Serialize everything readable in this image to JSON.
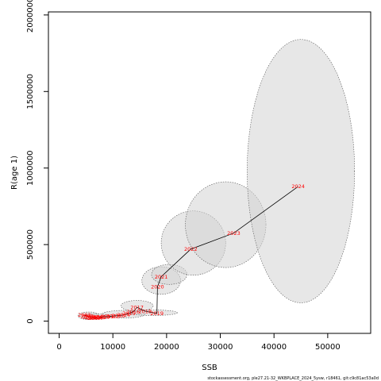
{
  "chart_data": {
    "type": "scatter",
    "title": "",
    "xlabel": "SSB",
    "ylabel": "R(age 1)",
    "xlim": [
      -2000,
      58000
    ],
    "ylim": [
      -80000,
      2020000
    ],
    "x_ticks": [
      0,
      10000,
      20000,
      30000,
      40000,
      50000
    ],
    "x_tick_labels": [
      "0",
      "10000",
      "20000",
      "30000",
      "40000",
      "50000"
    ],
    "y_ticks": [
      0,
      500000,
      1000000,
      1500000,
      2000000
    ],
    "y_tick_labels": [
      "0",
      "500000",
      "1000000",
      "1500000",
      "2000000"
    ],
    "grid": false,
    "legend": "none",
    "footer": "stockassessment.org, ple27.21-32_WKBPLACE_2024_5ysw, r18461, git:c9c81ac53a0d",
    "colors": {
      "line": "#000000",
      "label": "#ff0000",
      "ellipse_fill": "#d3d3d3",
      "ellipse_stroke": "#555555"
    },
    "series": [
      {
        "points": [
          {
            "label": "2002",
            "x": 4700,
            "y": 40000
          },
          {
            "label": "2003",
            "x": 5200,
            "y": 33000
          },
          {
            "label": "2004",
            "x": 5600,
            "y": 28000
          },
          {
            "label": "2005",
            "x": 6000,
            "y": 24000
          },
          {
            "label": "2006",
            "x": 6300,
            "y": 22000
          },
          {
            "label": "2007",
            "x": 6600,
            "y": 20000
          },
          {
            "label": "2008",
            "x": 7000,
            "y": 22000
          },
          {
            "label": "2009",
            "x": 7500,
            "y": 25000
          },
          {
            "label": "2010",
            "x": 8200,
            "y": 28000
          },
          {
            "label": "2011",
            "x": 9000,
            "y": 30000
          },
          {
            "label": "2012",
            "x": 10000,
            "y": 33000
          },
          {
            "label": "2013",
            "x": 11000,
            "y": 36000
          },
          {
            "label": "2014",
            "x": 12000,
            "y": 40000
          },
          {
            "label": "2015",
            "x": 13000,
            "y": 50000
          },
          {
            "label": "2016",
            "x": 13800,
            "y": 62000
          },
          {
            "label": "2017",
            "x": 14500,
            "y": 90000
          },
          {
            "label": "2018",
            "x": 16000,
            "y": 65000
          },
          {
            "label": "2019",
            "x": 18200,
            "y": 50000
          },
          {
            "label": "2020",
            "x": 18300,
            "y": 225000
          },
          {
            "label": "2021",
            "x": 19000,
            "y": 290000
          },
          {
            "label": "2022",
            "x": 24500,
            "y": 470000
          },
          {
            "label": "2023",
            "x": 32500,
            "y": 575000
          },
          {
            "label": "2024",
            "x": 44500,
            "y": 880000
          }
        ],
        "ellipses": [
          {
            "cx": 5500,
            "cy": 35000,
            "rx": 2000,
            "ry": 25000
          },
          {
            "cx": 7000,
            "cy": 30000,
            "rx": 2600,
            "ry": 18000
          },
          {
            "cx": 12000,
            "cy": 45000,
            "rx": 4000,
            "ry": 25000
          },
          {
            "cx": 14500,
            "cy": 100000,
            "rx": 3000,
            "ry": 35000
          },
          {
            "cx": 17500,
            "cy": 55000,
            "rx": 4500,
            "ry": 18000
          },
          {
            "cx": 19000,
            "cy": 265000,
            "rx": 3600,
            "ry": 90000
          },
          {
            "cx": 20500,
            "cy": 305000,
            "rx": 3300,
            "ry": 65000
          },
          {
            "cx": 25000,
            "cy": 510000,
            "rx": 6000,
            "ry": 210000
          },
          {
            "cx": 31000,
            "cy": 630000,
            "rx": 7500,
            "ry": 280000
          },
          {
            "cx": 45000,
            "cy": 980000,
            "rx": 10000,
            "ry": 860000
          }
        ]
      }
    ]
  }
}
